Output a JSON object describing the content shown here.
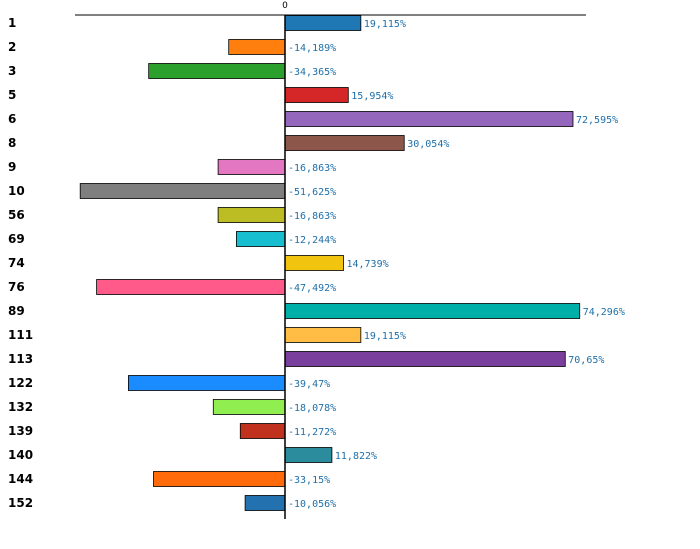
{
  "chart_data": {
    "type": "bar",
    "orientation": "horizontal",
    "title": "",
    "xlabel": "",
    "ylabel": "",
    "zero_tick_label": "0",
    "xlim": [
      -55,
      77
    ],
    "grid": false,
    "categories": [
      "1",
      "2",
      "3",
      "5",
      "6",
      "8",
      "9",
      "10",
      "56",
      "69",
      "74",
      "76",
      "89",
      "111",
      "113",
      "122",
      "132",
      "139",
      "140",
      "144",
      "152"
    ],
    "values": [
      19.115,
      -14.189,
      -34.365,
      15.954,
      72.595,
      30.054,
      -16.863,
      -51.625,
      -16.863,
      -12.244,
      14.739,
      -47.492,
      74.296,
      19.115,
      70.65,
      -39.47,
      -18.078,
      -11.272,
      11.822,
      -33.15,
      -10.056
    ],
    "value_labels": [
      "19,115%",
      "-14,189%",
      "-34,365%",
      "15,954%",
      "72,595%",
      "30,054%",
      "-16,863%",
      "-51,625%",
      "-16,863%",
      "-12,244%",
      "14,739%",
      "-47,492%",
      "74,296%",
      "19,115%",
      "70,65%",
      "-39,47%",
      "-18,078%",
      "-11,272%",
      "11,822%",
      "-33,15%",
      "-10,056%"
    ],
    "colors": [
      "#1f77b4",
      "#ff7f0e",
      "#2ca02c",
      "#d62728",
      "#9467bd",
      "#8c564b",
      "#e377c2",
      "#7f7f7f",
      "#bcbd22",
      "#17becf",
      "#f1c40f",
      "#ff5a8a",
      "#00b0a8",
      "#ffbd45",
      "#7a3e9d",
      "#1a8cff",
      "#90ee50",
      "#c0321e",
      "#2a8c9c",
      "#ff6a0a",
      "#2471b0"
    ]
  }
}
